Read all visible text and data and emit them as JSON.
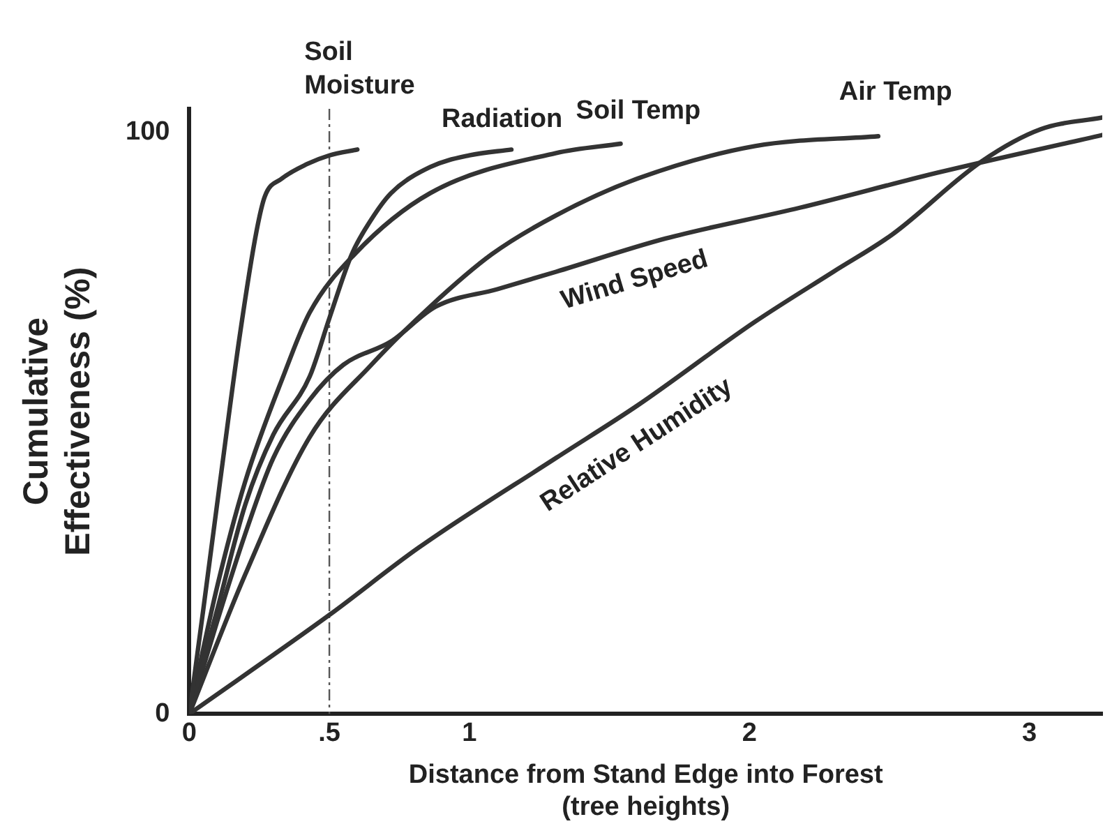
{
  "chart_data": {
    "type": "line",
    "xlabel": "Distance from Stand Edge into Forest\n(tree heights)",
    "ylabel": "Cumulative\nEffectiveness (%)",
    "xlim": [
      0,
      3.26
    ],
    "ylim": [
      0,
      104
    ],
    "xticks": [
      0,
      {
        "value": 0.5,
        "label": ".5"
      },
      1,
      2,
      3
    ],
    "yticks": [
      0,
      100
    ],
    "grid": false,
    "legend": false,
    "marker": "none",
    "line_style": "solid",
    "ref_lines": [
      {
        "axis": "x",
        "value": 0.5,
        "color": "#555555",
        "line_style": "dashed"
      }
    ],
    "series": [
      {
        "name": "Soil\nMoisture",
        "color": "#333333",
        "x": [
          0,
          0.05,
          0.11,
          0.18,
          0.24,
          0.27,
          0.33,
          0.42,
          0.5,
          0.6
        ],
        "values": [
          0,
          18,
          40,
          65,
          83,
          89,
          92,
          94.5,
          96,
          97
        ]
      },
      {
        "name": "Radiation",
        "color": "#333333",
        "x": [
          0,
          0.1,
          0.2,
          0.3,
          0.43,
          0.5,
          0.58,
          0.65,
          0.72,
          0.86,
          1.0,
          1.15
        ],
        "values": [
          0,
          18,
          36,
          48,
          58,
          68,
          79,
          85,
          89.5,
          94,
          96,
          97
        ]
      },
      {
        "name": "Soil Temp",
        "color": "#333333",
        "x": [
          0,
          0.1,
          0.2,
          0.34,
          0.43,
          0.59,
          0.86,
          1.31,
          1.54
        ],
        "values": [
          0,
          22,
          40,
          58.6,
          69,
          79,
          89.5,
          96.4,
          98
        ]
      },
      {
        "name": "Air Temp",
        "color": "#333333",
        "x": [
          0,
          0.2,
          0.43,
          0.65,
          0.86,
          1.08,
          1.31,
          1.6,
          2.02,
          2.46
        ],
        "values": [
          0,
          24,
          47.6,
          60,
          70,
          79,
          85.7,
          92,
          97.6,
          99.3
        ]
      },
      {
        "name": "Wind Speed",
        "color": "#333333",
        "x": [
          0,
          0.1,
          0.2,
          0.3,
          0.43,
          0.55,
          0.72,
          0.88,
          1.1,
          1.31,
          1.7,
          2.18,
          2.67,
          3.26
        ],
        "values": [
          0,
          16,
          31,
          44,
          54,
          60,
          64,
          70,
          73,
          76,
          81.7,
          87,
          93,
          99.5
        ]
      },
      {
        "name": "Relative Humidity",
        "color": "#333333",
        "x": [
          0,
          0.5,
          0.82,
          1.31,
          1.6,
          2.02,
          2.3,
          2.51,
          2.83,
          3.04,
          3.26
        ],
        "values": [
          0,
          17,
          28.6,
          44,
          53,
          67.4,
          76,
          82.4,
          95,
          100.5,
          102.5
        ]
      }
    ]
  }
}
